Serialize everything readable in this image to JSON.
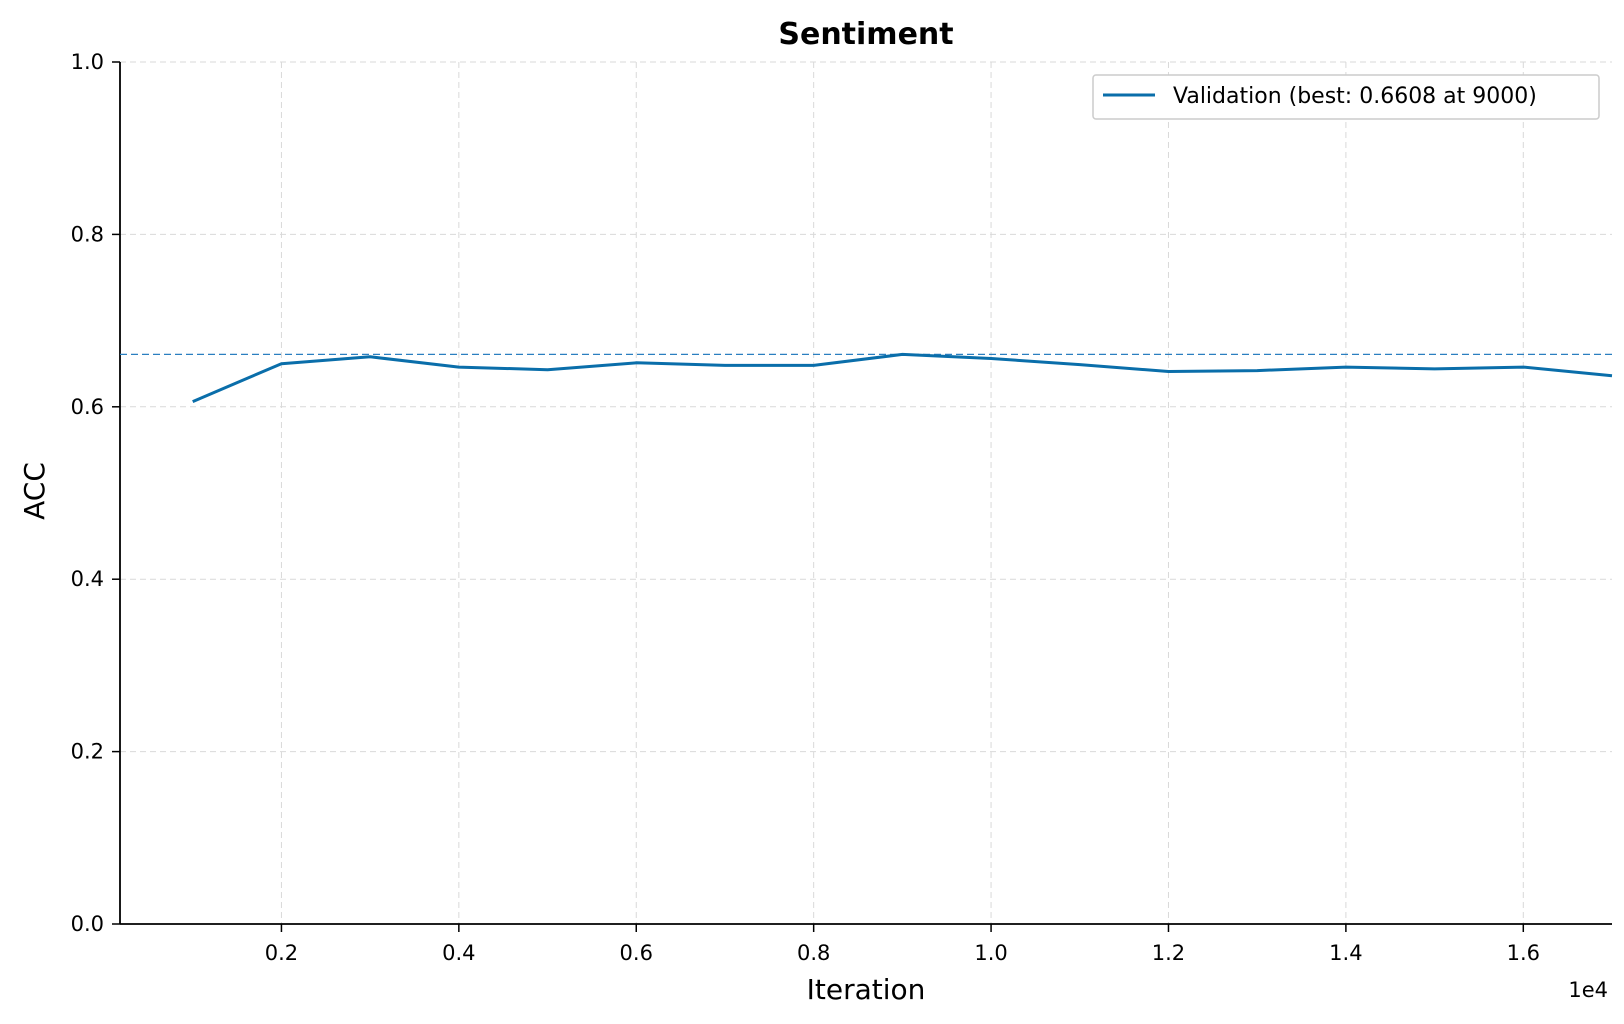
{
  "chart_data": {
    "type": "line",
    "title": "Sentiment",
    "xlabel": "Iteration",
    "ylabel": "ACC",
    "x_offset_label": "1e4",
    "xlim": [
      180,
      17000
    ],
    "ylim": [
      0.0,
      1.0
    ],
    "x_ticks": [
      2000,
      4000,
      6000,
      8000,
      10000,
      12000,
      14000,
      16000
    ],
    "x_tick_labels": [
      "0.2",
      "0.4",
      "0.6",
      "0.8",
      "1.0",
      "1.2",
      "1.4",
      "1.6"
    ],
    "y_ticks": [
      0.0,
      0.2,
      0.4,
      0.6,
      0.8,
      1.0
    ],
    "y_tick_labels": [
      "0.0",
      "0.2",
      "0.4",
      "0.6",
      "0.8",
      "1.0"
    ],
    "grid": true,
    "legend_position": "top-right",
    "series": [
      {
        "name": "Validation (best: 0.6608 at 9000)",
        "color": "#0a6eaa",
        "x": [
          1000,
          2000,
          3000,
          4000,
          5000,
          6000,
          7000,
          8000,
          9000,
          10000,
          11000,
          12000,
          13000,
          14000,
          15000,
          16000,
          17000
        ],
        "y": [
          0.606,
          0.65,
          0.658,
          0.646,
          0.643,
          0.651,
          0.648,
          0.648,
          0.6608,
          0.656,
          0.649,
          0.641,
          0.642,
          0.646,
          0.644,
          0.646,
          0.636
        ]
      }
    ],
    "reference_line": {
      "y": 0.6608,
      "color": "#2a7fc0",
      "style": "dashed"
    }
  }
}
